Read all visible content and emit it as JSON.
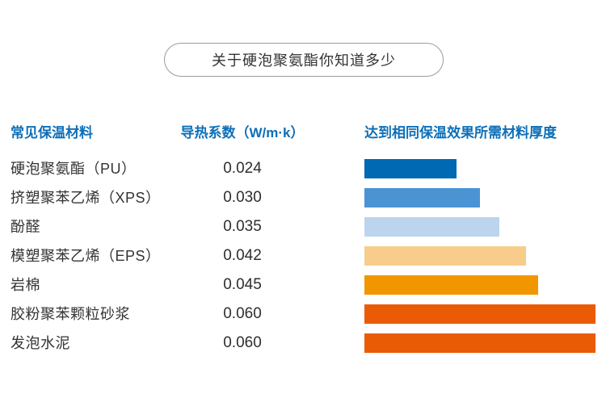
{
  "title": "关于硬泡聚氨酯你知道多少",
  "table": {
    "header_material": "常见保温材料",
    "header_conductivity": "导热系数（W/m·k）",
    "header_thickness": "达到相同保温效果所需材料厚度",
    "header_color": "#0d6fb8"
  },
  "chart_data": {
    "type": "bar",
    "orientation": "horizontal",
    "title": "关于硬泡聚氨酯你知道多少",
    "categories": [
      "硬泡聚氨酯（PU）",
      "挤塑聚苯乙烯（XPS）",
      "酚醛",
      "模塑聚苯乙烯（EPS）",
      "岩棉",
      "胶粉聚苯颗粒砂浆",
      "发泡水泥"
    ],
    "values": [
      0.024,
      0.03,
      0.035,
      0.042,
      0.045,
      0.06,
      0.06
    ],
    "value_labels": [
      "0.024",
      "0.030",
      "0.035",
      "0.042",
      "0.045",
      "0.060",
      "0.060"
    ],
    "bar_colors": [
      "#0069b4",
      "#4a94d4",
      "#bcd4ed",
      "#f8cd8b",
      "#f29600",
      "#ea5b06",
      "#ea5b06"
    ],
    "xlabel": "导热系数（W/m·k）",
    "bars_label": "达到相同保温效果所需材料厚度",
    "categories_label": "常见保温材料",
    "xlim": [
      0,
      0.06
    ],
    "grid": false,
    "legend": false,
    "bars_proportional_to": "conductivity value"
  }
}
